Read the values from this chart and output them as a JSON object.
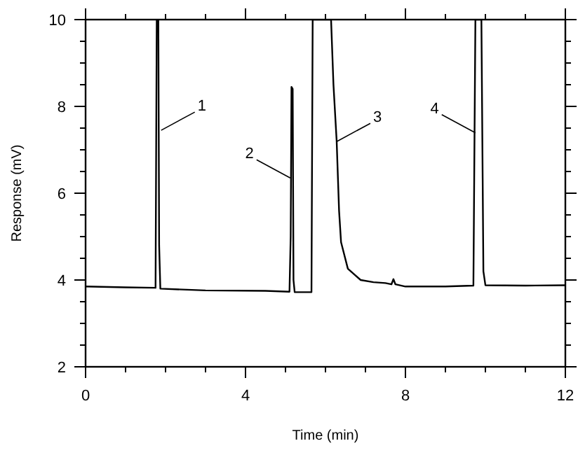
{
  "chart_data": {
    "type": "line",
    "xlabel": "Time (min)",
    "ylabel": "Response (mV)",
    "x": [
      0,
      1.0,
      1.75,
      1.78,
      1.82,
      1.84,
      1.87,
      3.0,
      4.5,
      5.1,
      5.13,
      5.15,
      5.18,
      5.2,
      5.23,
      5.65,
      5.68,
      6.12,
      6.14,
      6.2,
      6.28,
      6.34,
      6.39,
      6.56,
      6.88,
      7.2,
      7.5,
      7.65,
      7.7,
      7.75,
      8.0,
      9.0,
      9.7,
      9.75,
      9.9,
      9.95,
      10.0,
      11.0,
      12
    ],
    "series": [
      {
        "color": "#000000",
        "values": [
          3.85,
          3.83,
          3.82,
          10,
          10,
          4.8,
          3.8,
          3.76,
          3.75,
          3.73,
          5.0,
          8.45,
          8.4,
          4.0,
          3.72,
          3.72,
          10,
          10,
          10,
          8.5,
          7.2,
          5.6,
          4.87,
          4.26,
          4.0,
          3.95,
          3.93,
          3.9,
          4.02,
          3.9,
          3.85,
          3.85,
          3.87,
          10,
          10,
          4.2,
          3.88,
          3.87,
          3.88
        ]
      }
    ],
    "xlim": [
      0,
      12
    ],
    "ylim": [
      2,
      10
    ],
    "xticks": [
      0,
      {
        "value": 1,
        "label": null
      },
      {
        "value": 2,
        "label": null
      },
      {
        "value": 3,
        "label": null
      },
      4,
      {
        "value": 5,
        "label": null
      },
      {
        "value": 6,
        "label": null
      },
      {
        "value": 7,
        "label": null
      },
      8,
      {
        "value": 9,
        "label": null
      },
      {
        "value": 10,
        "label": null
      },
      {
        "value": 11,
        "label": null
      },
      12
    ],
    "yticks": [
      2,
      {
        "value": 2.5,
        "label": null
      },
      {
        "value": 3,
        "label": null
      },
      {
        "value": 3.5,
        "label": null
      },
      4,
      {
        "value": 4.5,
        "label": null
      },
      {
        "value": 5,
        "label": null
      },
      {
        "value": 5.5,
        "label": null
      },
      6,
      {
        "value": 6.5,
        "label": null
      },
      {
        "value": 7,
        "label": null
      },
      {
        "value": 7.5,
        "label": null
      },
      8,
      {
        "value": 8.5,
        "label": null
      },
      {
        "value": 9,
        "label": null
      },
      {
        "value": 9.5,
        "label": null
      },
      10
    ],
    "annotations": [
      {
        "text": "1",
        "x": 1.89,
        "y": 7.45
      },
      {
        "text": "2",
        "x": 5.12,
        "y": 6.35
      },
      {
        "text": "3",
        "x": 6.28,
        "y": 7.19
      },
      {
        "text": "4",
        "x": 9.75,
        "y": 7.39
      }
    ],
    "grid": false,
    "marker": "none",
    "line_style": "solid"
  }
}
